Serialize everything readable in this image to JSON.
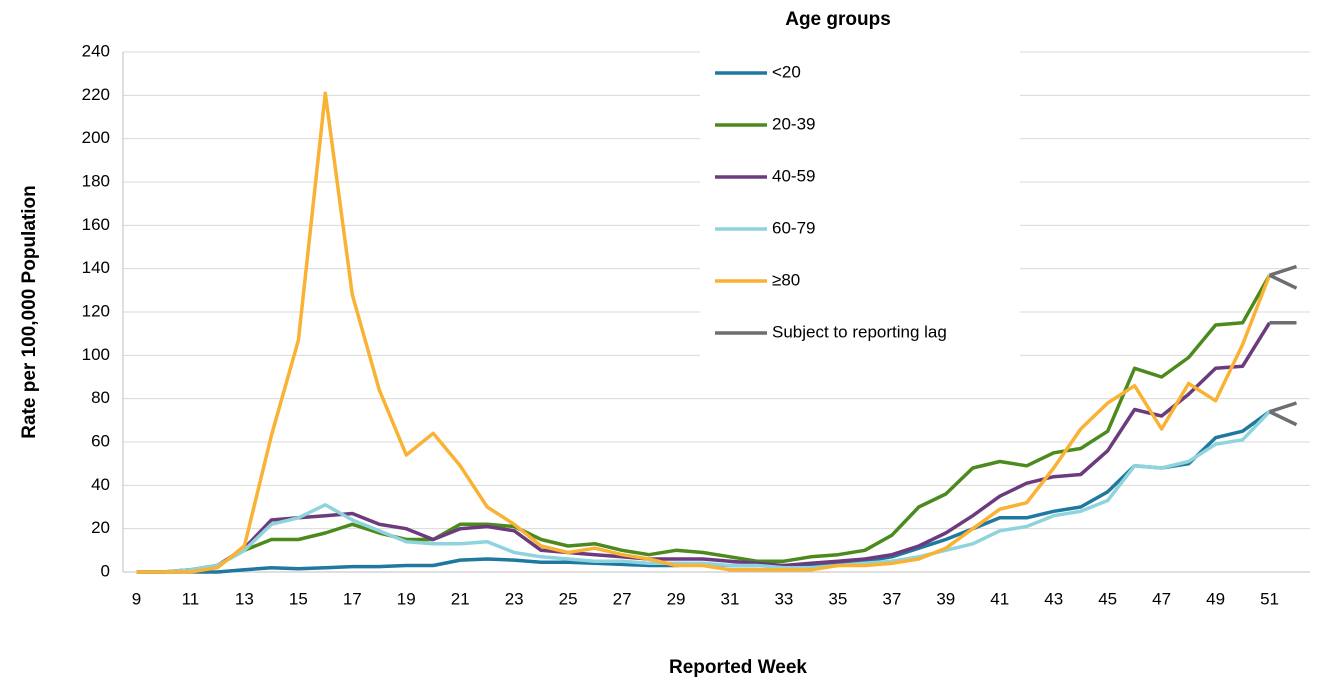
{
  "chart_data": {
    "type": "line",
    "legend_title": "Age groups",
    "xlabel": "Reported Week",
    "ylabel": "Rate per 100,000 Population",
    "x": [
      9,
      10,
      11,
      12,
      13,
      14,
      15,
      16,
      17,
      18,
      19,
      20,
      21,
      22,
      23,
      24,
      25,
      26,
      27,
      28,
      29,
      30,
      31,
      32,
      33,
      34,
      35,
      36,
      37,
      38,
      39,
      40,
      41,
      42,
      43,
      44,
      45,
      46,
      47,
      48,
      49,
      50,
      51,
      52
    ],
    "xlim": [
      8.5,
      52.5
    ],
    "xticks": [
      9,
      11,
      13,
      15,
      17,
      19,
      21,
      23,
      25,
      27,
      29,
      31,
      33,
      35,
      37,
      39,
      41,
      43,
      45,
      47,
      49,
      51
    ],
    "ylim": [
      0,
      240
    ],
    "yticks": [
      0,
      20,
      40,
      60,
      80,
      100,
      120,
      140,
      160,
      180,
      200,
      220,
      240
    ],
    "grid": true,
    "series": [
      {
        "name": "<20",
        "color": "#1f78a0",
        "values": [
          0,
          0,
          0,
          0,
          1,
          2,
          1.5,
          2,
          2.5,
          2.5,
          3,
          3,
          5.5,
          6,
          5.5,
          4.5,
          4.5,
          4,
          3.5,
          3,
          3,
          3.5,
          3,
          3,
          3,
          3,
          4,
          5,
          7,
          11,
          15,
          20,
          25,
          25,
          28,
          30,
          37,
          49,
          48,
          50,
          62,
          65,
          74,
          78
        ]
      },
      {
        "name": "20-39",
        "color": "#4d8a1e",
        "values": [
          0,
          0,
          1,
          3,
          10,
          15,
          15,
          18,
          22,
          18,
          15,
          15,
          22,
          22,
          21,
          15,
          12,
          13,
          10,
          8,
          10,
          9,
          7,
          5,
          5,
          7,
          8,
          10,
          17,
          30,
          36,
          48,
          51,
          49,
          55,
          57,
          65,
          94,
          90,
          99,
          114,
          115,
          137,
          141
        ]
      },
      {
        "name": "40-59",
        "color": "#6b3b7e",
        "values": [
          0,
          0,
          1,
          3,
          11,
          24,
          25,
          26,
          27,
          22,
          20,
          15,
          20,
          21,
          19,
          10,
          9,
          8,
          7,
          6,
          6,
          6,
          5,
          4,
          3,
          4,
          5,
          6,
          8,
          12,
          18,
          26,
          35,
          41,
          44,
          45,
          56,
          75,
          72,
          82,
          94,
          95,
          115,
          115
        ]
      },
      {
        "name": "60-79",
        "color": "#8fd4dd",
        "values": [
          0,
          0,
          1,
          3,
          10,
          22,
          25,
          31,
          24,
          19,
          14,
          13,
          13,
          14,
          9,
          7,
          6,
          5,
          5,
          4,
          4,
          4,
          3,
          3,
          2,
          2,
          3,
          4,
          5,
          7,
          10,
          13,
          19,
          21,
          26,
          28,
          33,
          49,
          48,
          51,
          59,
          61,
          74,
          68
        ]
      },
      {
        "name": "≥80",
        "color": "#f9b233",
        "values": [
          0,
          0,
          0,
          2,
          12,
          63,
          107,
          221,
          128,
          84,
          54,
          64,
          49,
          30,
          22,
          12,
          9,
          11,
          8,
          6,
          3,
          3,
          1,
          1,
          1,
          1,
          3,
          3,
          4,
          6,
          11,
          20,
          29,
          32,
          48,
          66,
          78,
          86,
          66,
          87,
          79,
          105,
          137,
          131
        ]
      }
    ],
    "lag": {
      "name": "Subject to reporting lag",
      "color": "#6d6e71",
      "start_x": 51
    }
  }
}
